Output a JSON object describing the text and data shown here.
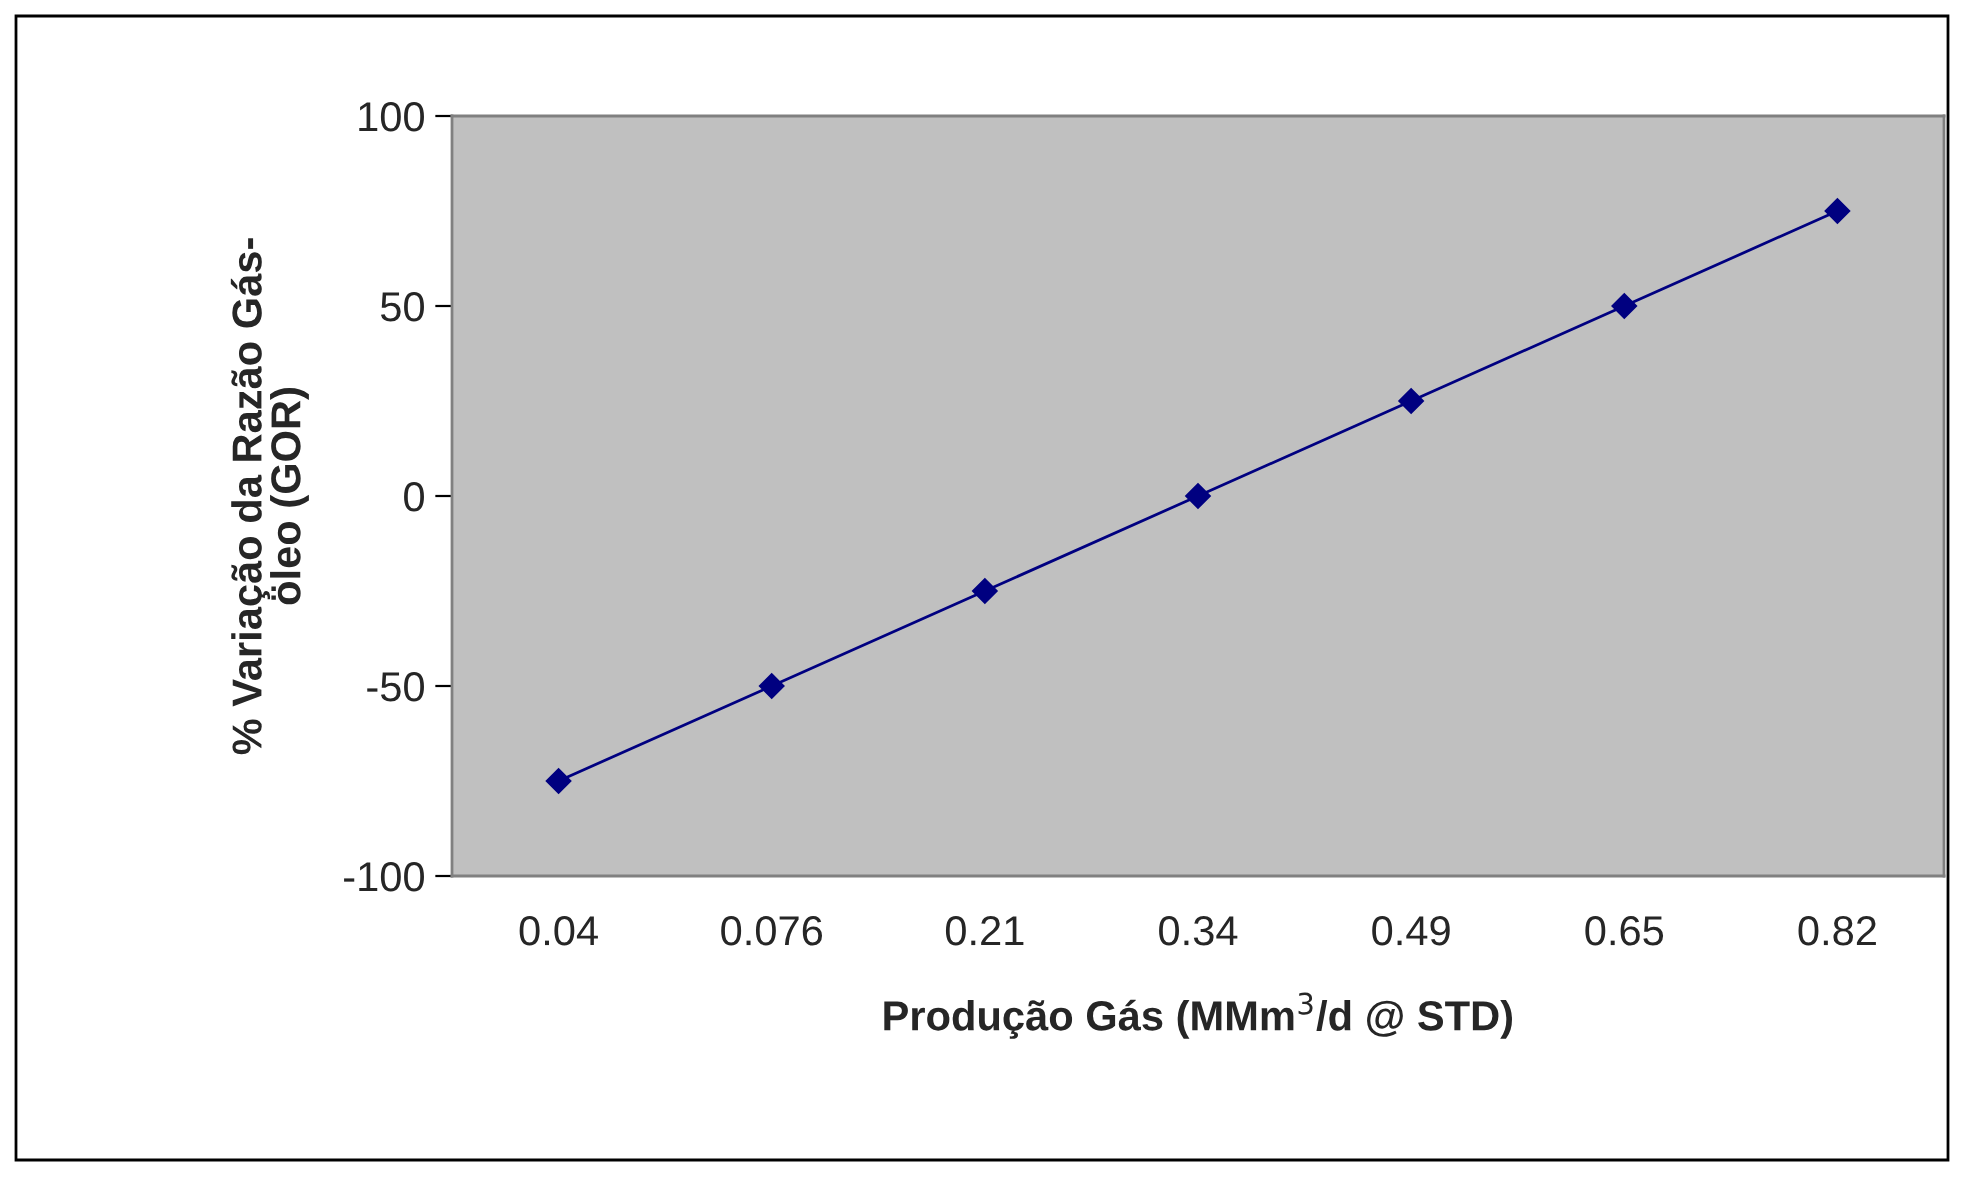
{
  "chart_data": {
    "type": "line",
    "xlabel": "Produção Gás (MMm$^{3}$/d @ STD)",
    "ylabel": "% Variação da Razão Gás-\nöleo (GOR)",
    "categories": [
      "0.04",
      "0.076",
      "0.21",
      "0.34",
      "0.49",
      "0.65",
      "0.82"
    ],
    "series": [
      {
        "color": "#000080",
        "values": [
          -75,
          -50,
          -25,
          0,
          25,
          50,
          75
        ]
      }
    ],
    "ylim": [
      -100,
      100
    ],
    "yticks": [
      -100,
      -50,
      0,
      50,
      100
    ],
    "marker": "diamond",
    "line_style": "solid",
    "grid": false,
    "legend": false
  }
}
